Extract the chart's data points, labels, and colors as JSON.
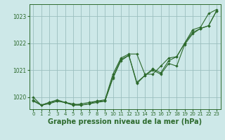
{
  "background_color": "#cde8e8",
  "grid_color": "#9bbfbf",
  "line_color": "#2d6a2d",
  "marker_color": "#2d6a2d",
  "title": "Graphe pression niveau de la mer (hPa)",
  "title_fontsize": 7.0,
  "xlim": [
    -0.5,
    23.5
  ],
  "ylim": [
    1019.55,
    1023.45
  ],
  "yticks": [
    1020,
    1021,
    1022,
    1023
  ],
  "xticks": [
    0,
    1,
    2,
    3,
    4,
    5,
    6,
    7,
    8,
    9,
    10,
    11,
    12,
    13,
    14,
    15,
    16,
    17,
    18,
    19,
    20,
    21,
    22,
    23
  ],
  "series": [
    [
      1019.9,
      1019.7,
      1019.8,
      1019.85,
      1019.8,
      1019.75,
      1019.7,
      1019.75,
      1019.85,
      1019.85,
      1020.7,
      1021.35,
      1021.55,
      1020.5,
      1020.8,
      1021.05,
      1020.9,
      1021.35,
      1021.5,
      1022.0,
      1022.5,
      1022.6,
      1023.1,
      1023.25
    ],
    [
      1020.0,
      1019.7,
      1019.8,
      1019.9,
      1019.8,
      1019.7,
      1019.75,
      1019.8,
      1019.85,
      1019.9,
      1020.85,
      1021.45,
      1021.6,
      1021.6,
      1020.85,
      1020.85,
      1021.15,
      1021.45,
      1021.5,
      1022.0,
      1022.4,
      1022.55,
      1022.65,
      1023.2
    ],
    [
      1019.85,
      1019.7,
      1019.75,
      1019.85,
      1019.8,
      1019.7,
      1019.7,
      1019.75,
      1019.8,
      1019.85,
      1020.75,
      1021.4,
      1021.55,
      1020.55,
      1020.8,
      1021.0,
      1020.85,
      1021.25,
      1021.15,
      1021.95,
      1022.35,
      1022.55,
      1022.65,
      1023.2
    ]
  ]
}
